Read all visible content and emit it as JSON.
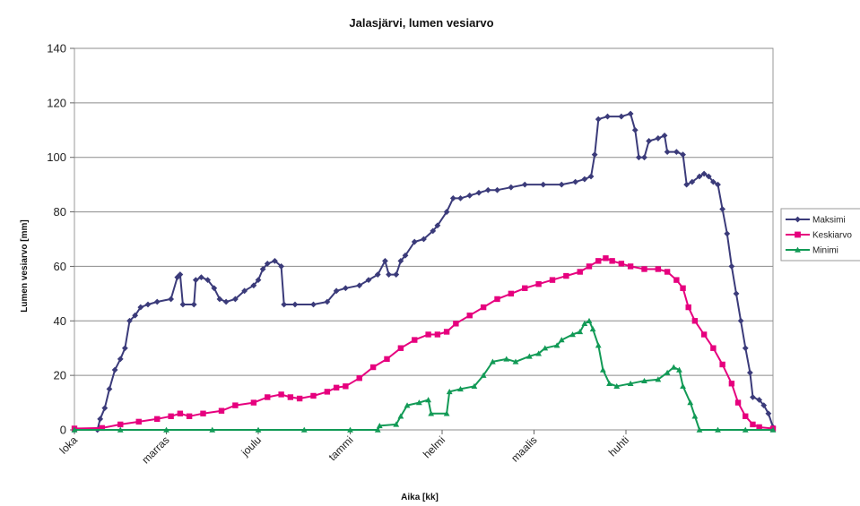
{
  "chart_data": {
    "type": "line",
    "title": "Jalasjärvi, lumen vesiarvo",
    "xlabel": "Aika [kk]",
    "ylabel": "Lumen vesiarvo [mm]",
    "ylim": [
      0,
      140
    ],
    "yticks": [
      0,
      20,
      40,
      60,
      80,
      100,
      120,
      140
    ],
    "grid": "horizontal",
    "legend_position": "right",
    "x_categories": [
      "loka",
      "marras",
      "joulu",
      "tammi",
      "helmi",
      "maalis",
      "huhti"
    ],
    "xlim": [
      0,
      7.6
    ],
    "series": [
      {
        "name": "Maksimi",
        "color": "#3b3b7a",
        "marker": "diamond",
        "points": [
          [
            0,
            0
          ],
          [
            0.25,
            0
          ],
          [
            0.28,
            4
          ],
          [
            0.33,
            8
          ],
          [
            0.38,
            15
          ],
          [
            0.44,
            22
          ],
          [
            0.5,
            26
          ],
          [
            0.55,
            30
          ],
          [
            0.6,
            40
          ],
          [
            0.66,
            42
          ],
          [
            0.72,
            45
          ],
          [
            0.8,
            46
          ],
          [
            0.9,
            47
          ],
          [
            1.05,
            48
          ],
          [
            1.12,
            56
          ],
          [
            1.15,
            57
          ],
          [
            1.18,
            46
          ],
          [
            1.3,
            46
          ],
          [
            1.32,
            55
          ],
          [
            1.38,
            56
          ],
          [
            1.45,
            55
          ],
          [
            1.52,
            52
          ],
          [
            1.58,
            48
          ],
          [
            1.65,
            47
          ],
          [
            1.75,
            48
          ],
          [
            1.85,
            51
          ],
          [
            1.95,
            53
          ],
          [
            2.0,
            55
          ],
          [
            2.05,
            59
          ],
          [
            2.1,
            61
          ],
          [
            2.18,
            62
          ],
          [
            2.25,
            60
          ],
          [
            2.28,
            46
          ],
          [
            2.4,
            46
          ],
          [
            2.6,
            46
          ],
          [
            2.75,
            47
          ],
          [
            2.85,
            51
          ],
          [
            2.95,
            52
          ],
          [
            3.1,
            53
          ],
          [
            3.2,
            55
          ],
          [
            3.3,
            57
          ],
          [
            3.38,
            62
          ],
          [
            3.42,
            57
          ],
          [
            3.5,
            57
          ],
          [
            3.55,
            62
          ],
          [
            3.6,
            64
          ],
          [
            3.7,
            69
          ],
          [
            3.8,
            70
          ],
          [
            3.9,
            73
          ],
          [
            3.95,
            75
          ],
          [
            4.05,
            80
          ],
          [
            4.12,
            85
          ],
          [
            4.2,
            85
          ],
          [
            4.3,
            86
          ],
          [
            4.4,
            87
          ],
          [
            4.5,
            88
          ],
          [
            4.6,
            88
          ],
          [
            4.75,
            89
          ],
          [
            4.9,
            90
          ],
          [
            5.1,
            90
          ],
          [
            5.3,
            90
          ],
          [
            5.45,
            91
          ],
          [
            5.55,
            92
          ],
          [
            5.62,
            93
          ],
          [
            5.66,
            101
          ],
          [
            5.7,
            114
          ],
          [
            5.8,
            115
          ],
          [
            5.95,
            115
          ],
          [
            6.05,
            116
          ],
          [
            6.1,
            110
          ],
          [
            6.14,
            100
          ],
          [
            6.2,
            100
          ],
          [
            6.25,
            106
          ],
          [
            6.35,
            107
          ],
          [
            6.42,
            108
          ],
          [
            6.45,
            102
          ],
          [
            6.55,
            102
          ],
          [
            6.62,
            101
          ],
          [
            6.66,
            90
          ],
          [
            6.72,
            91
          ],
          [
            6.8,
            93
          ],
          [
            6.85,
            94
          ],
          [
            6.9,
            93
          ],
          [
            6.95,
            91
          ],
          [
            7.0,
            90
          ],
          [
            7.05,
            81
          ],
          [
            7.1,
            72
          ],
          [
            7.15,
            60
          ],
          [
            7.2,
            50
          ],
          [
            7.25,
            40
          ],
          [
            7.3,
            30
          ],
          [
            7.35,
            21
          ],
          [
            7.38,
            12
          ],
          [
            7.45,
            11
          ],
          [
            7.5,
            9
          ],
          [
            7.55,
            6
          ],
          [
            7.6,
            1
          ]
        ]
      },
      {
        "name": "Keskiarvo",
        "color": "#e6007e",
        "marker": "square",
        "points": [
          [
            0,
            0.5
          ],
          [
            0.3,
            0.7
          ],
          [
            0.5,
            2
          ],
          [
            0.7,
            3
          ],
          [
            0.9,
            4
          ],
          [
            1.05,
            5
          ],
          [
            1.15,
            6
          ],
          [
            1.25,
            5
          ],
          [
            1.4,
            6
          ],
          [
            1.6,
            7
          ],
          [
            1.75,
            9
          ],
          [
            1.95,
            10
          ],
          [
            2.1,
            12
          ],
          [
            2.25,
            13
          ],
          [
            2.35,
            12
          ],
          [
            2.45,
            11.5
          ],
          [
            2.6,
            12.5
          ],
          [
            2.75,
            14
          ],
          [
            2.85,
            15.5
          ],
          [
            2.95,
            16
          ],
          [
            3.1,
            19
          ],
          [
            3.25,
            23
          ],
          [
            3.4,
            26
          ],
          [
            3.55,
            30
          ],
          [
            3.7,
            33
          ],
          [
            3.85,
            35
          ],
          [
            3.95,
            35
          ],
          [
            4.05,
            36
          ],
          [
            4.15,
            39
          ],
          [
            4.3,
            42
          ],
          [
            4.45,
            45
          ],
          [
            4.6,
            48
          ],
          [
            4.75,
            50
          ],
          [
            4.9,
            52
          ],
          [
            5.05,
            53.5
          ],
          [
            5.2,
            55
          ],
          [
            5.35,
            56.5
          ],
          [
            5.5,
            58
          ],
          [
            5.6,
            60
          ],
          [
            5.7,
            62
          ],
          [
            5.78,
            63
          ],
          [
            5.85,
            62
          ],
          [
            5.95,
            61
          ],
          [
            6.05,
            60
          ],
          [
            6.2,
            59
          ],
          [
            6.35,
            59
          ],
          [
            6.45,
            58
          ],
          [
            6.55,
            55
          ],
          [
            6.62,
            52
          ],
          [
            6.68,
            45
          ],
          [
            6.75,
            40
          ],
          [
            6.85,
            35
          ],
          [
            6.95,
            30
          ],
          [
            7.05,
            24
          ],
          [
            7.15,
            17
          ],
          [
            7.22,
            10
          ],
          [
            7.3,
            5
          ],
          [
            7.38,
            2
          ],
          [
            7.45,
            1
          ],
          [
            7.6,
            0.5
          ]
        ]
      },
      {
        "name": "Minimi",
        "color": "#129a56",
        "marker": "triangle",
        "points": [
          [
            0,
            0
          ],
          [
            0.5,
            0
          ],
          [
            1.0,
            0
          ],
          [
            1.5,
            0
          ],
          [
            2.0,
            0
          ],
          [
            2.5,
            0
          ],
          [
            3.0,
            0
          ],
          [
            3.3,
            0
          ],
          [
            3.32,
            1.5
          ],
          [
            3.5,
            2
          ],
          [
            3.55,
            5
          ],
          [
            3.62,
            9
          ],
          [
            3.75,
            10
          ],
          [
            3.85,
            11
          ],
          [
            3.88,
            6
          ],
          [
            4.05,
            6
          ],
          [
            4.08,
            14
          ],
          [
            4.2,
            15
          ],
          [
            4.35,
            16
          ],
          [
            4.45,
            20
          ],
          [
            4.55,
            25
          ],
          [
            4.7,
            26
          ],
          [
            4.8,
            25
          ],
          [
            4.95,
            27
          ],
          [
            5.05,
            28
          ],
          [
            5.12,
            30
          ],
          [
            5.25,
            31
          ],
          [
            5.3,
            33
          ],
          [
            5.42,
            35
          ],
          [
            5.5,
            36
          ],
          [
            5.55,
            39
          ],
          [
            5.6,
            40
          ],
          [
            5.64,
            37
          ],
          [
            5.7,
            31
          ],
          [
            5.75,
            22
          ],
          [
            5.82,
            17
          ],
          [
            5.9,
            16
          ],
          [
            6.05,
            17
          ],
          [
            6.2,
            18
          ],
          [
            6.35,
            18.5
          ],
          [
            6.45,
            21
          ],
          [
            6.52,
            23
          ],
          [
            6.58,
            22
          ],
          [
            6.62,
            16
          ],
          [
            6.7,
            10
          ],
          [
            6.75,
            5
          ],
          [
            6.8,
            0
          ],
          [
            7.0,
            0
          ],
          [
            7.3,
            0
          ],
          [
            7.6,
            0
          ]
        ]
      }
    ]
  }
}
